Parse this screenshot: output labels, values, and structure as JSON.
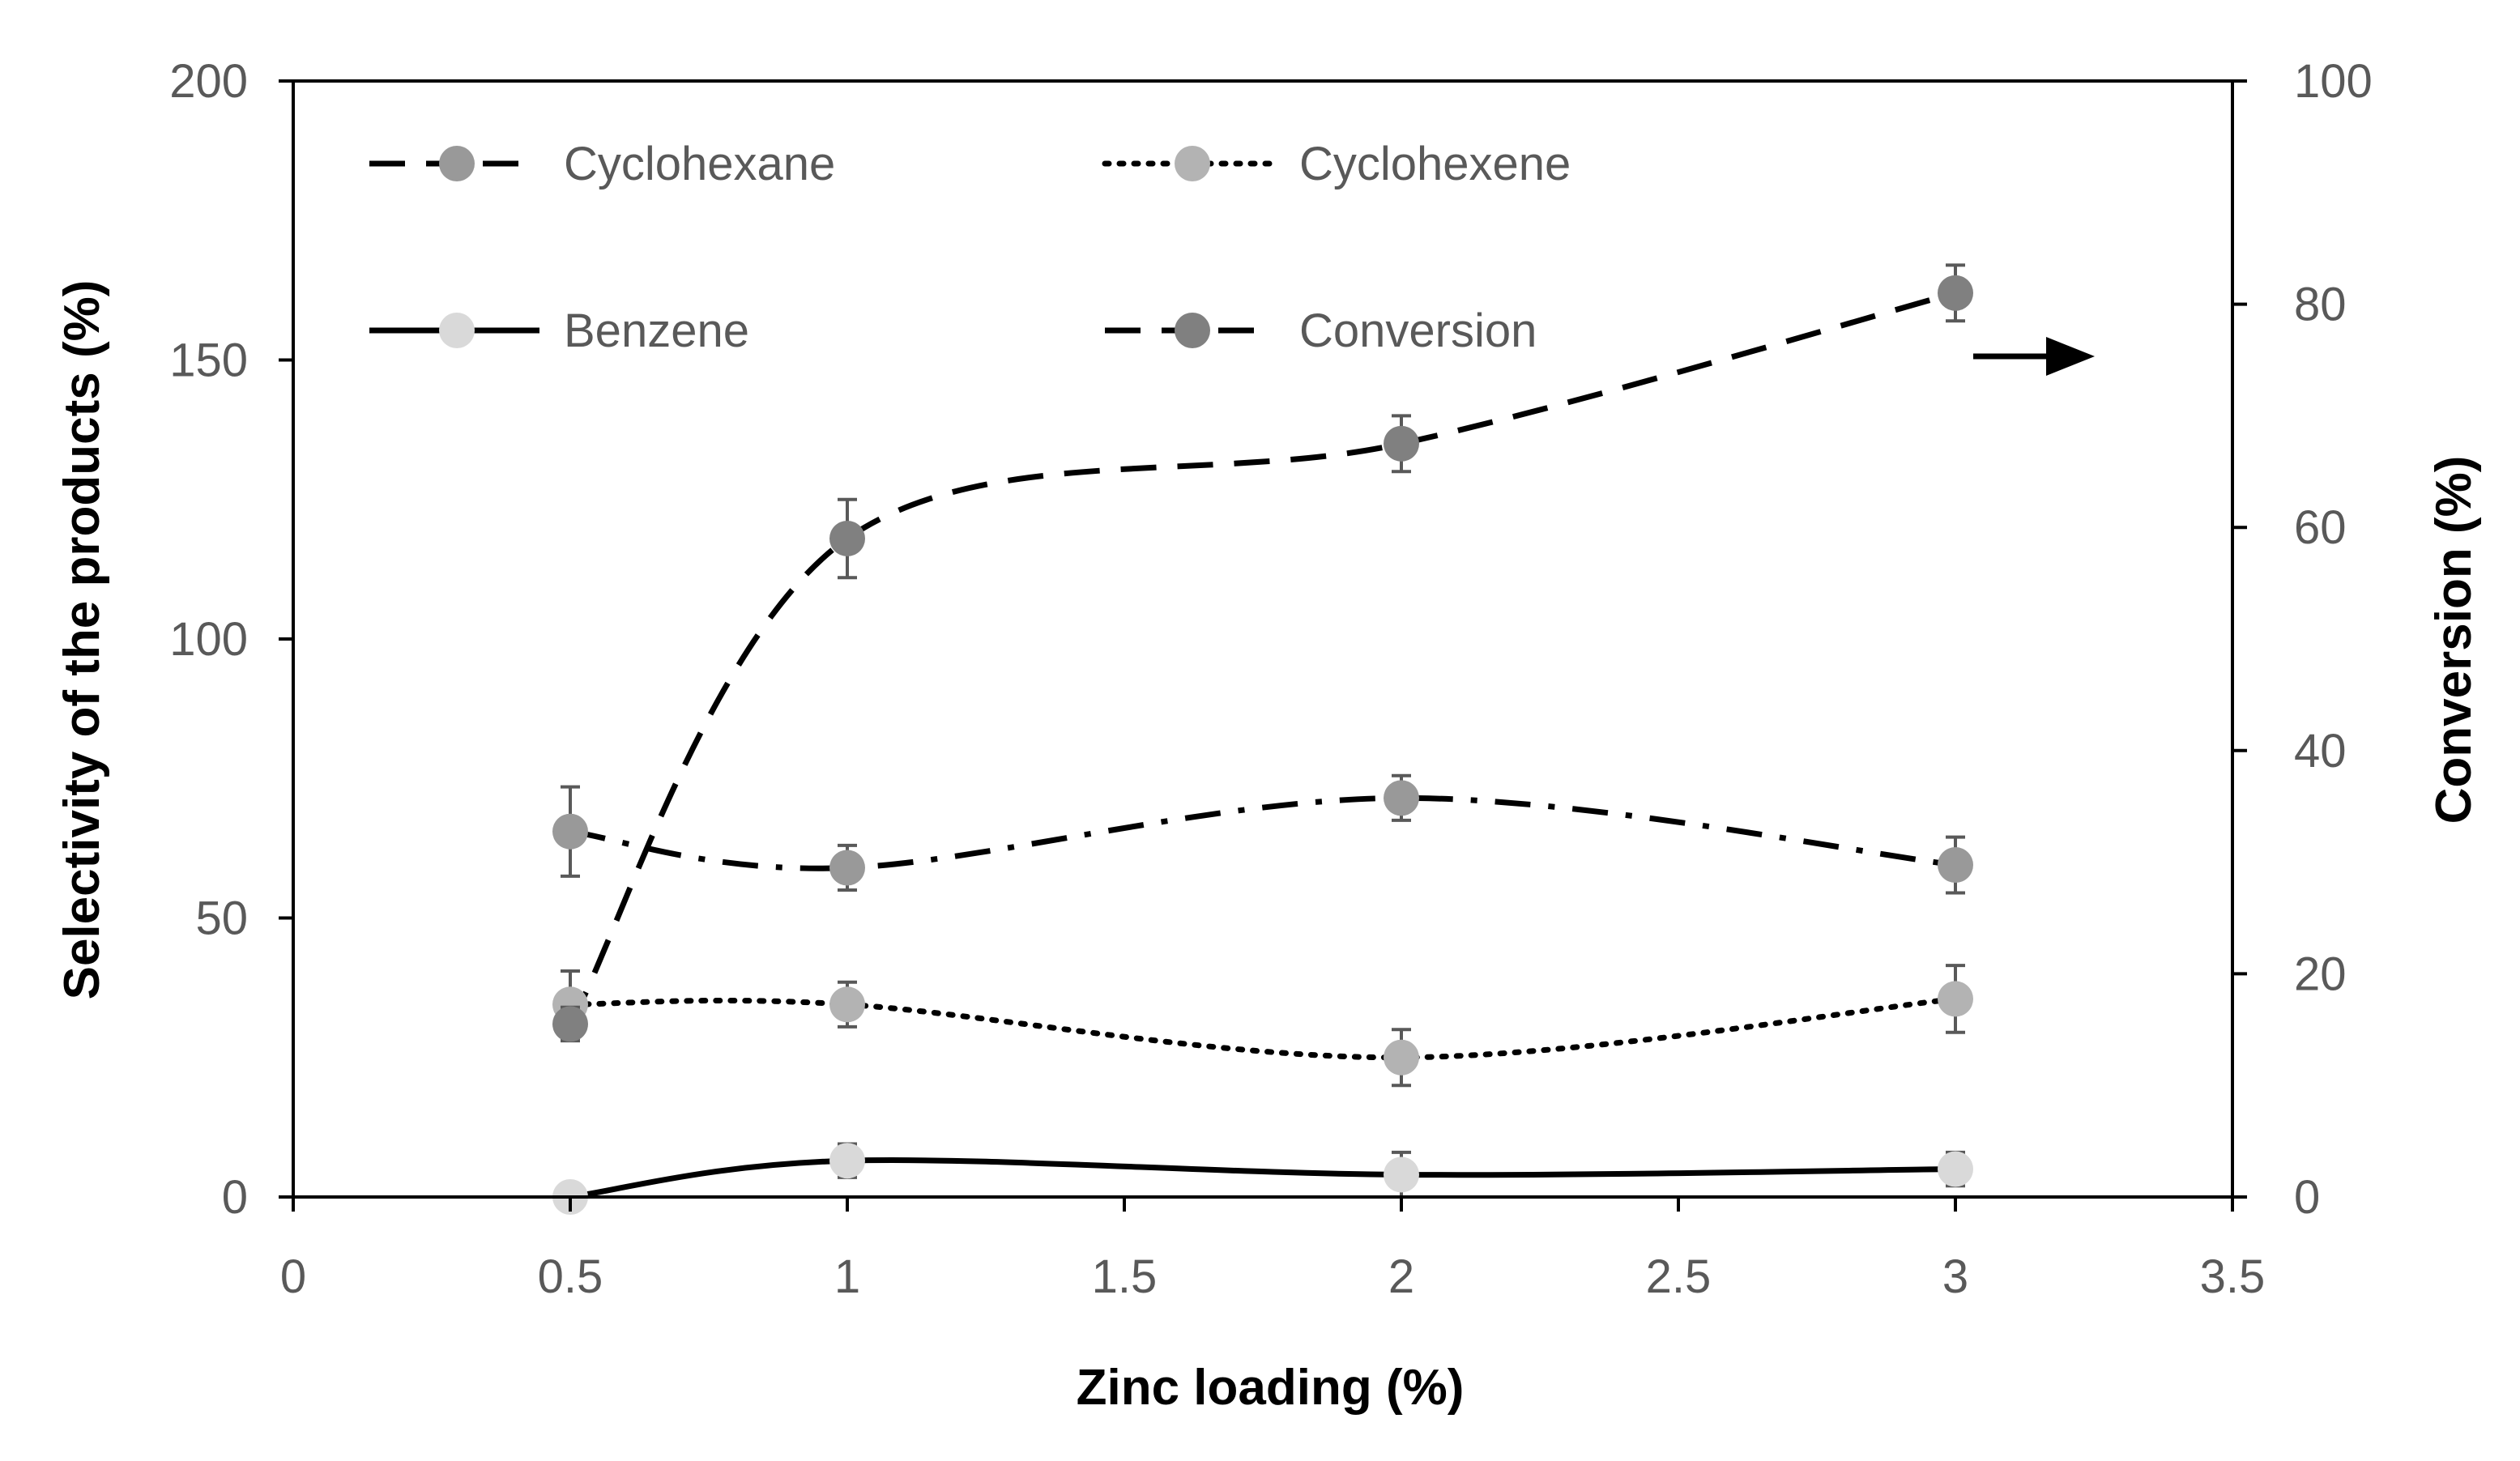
{
  "chart_data": {
    "type": "line",
    "title": "",
    "xlabel": "Zinc loading (%)",
    "ylabel": "Selectivity of the products (%)",
    "y2label": "Conversion (%)",
    "xlim": [
      0,
      3.5
    ],
    "ylim": [
      0,
      200
    ],
    "y2lim": [
      0,
      100
    ],
    "x_ticks": [
      "0",
      "0.5",
      "1",
      "1.5",
      "2",
      "2.5",
      "3",
      "3.5"
    ],
    "y_ticks": [
      "0",
      "50",
      "100",
      "150",
      "200"
    ],
    "y2_ticks": [
      "0",
      "20",
      "40",
      "60",
      "80",
      "100"
    ],
    "grid": false,
    "legend_position": "top-left",
    "annotation": "arrow pointing right (Conversion on right axis)",
    "x": [
      0.5,
      1,
      2,
      3
    ],
    "series": [
      {
        "name": "Cyclohexane",
        "axis": "left",
        "values": [
          65.5,
          59,
          71.5,
          59.5
        ],
        "errors": [
          8,
          4,
          4,
          5
        ],
        "line_style": "dash-dot",
        "marker_color": "#999999"
      },
      {
        "name": "Cyclohexene",
        "axis": "left",
        "values": [
          34.5,
          34.5,
          25,
          35.5
        ],
        "errors": [
          6,
          4,
          5,
          6
        ],
        "line_style": "dotted",
        "marker_color": "#b3b3b3"
      },
      {
        "name": "Benzene",
        "axis": "left",
        "values": [
          0,
          6.5,
          4,
          5
        ],
        "errors": [
          0,
          3,
          4,
          3
        ],
        "line_style": "solid",
        "marker_color": "#d9d9d9"
      },
      {
        "name": "Conversion",
        "axis": "right",
        "values": [
          15.5,
          59,
          67.5,
          81
        ],
        "errors": [
          1.5,
          3.5,
          2.5,
          2.5
        ],
        "line_style": "dashed",
        "marker_color": "#808080"
      }
    ]
  }
}
